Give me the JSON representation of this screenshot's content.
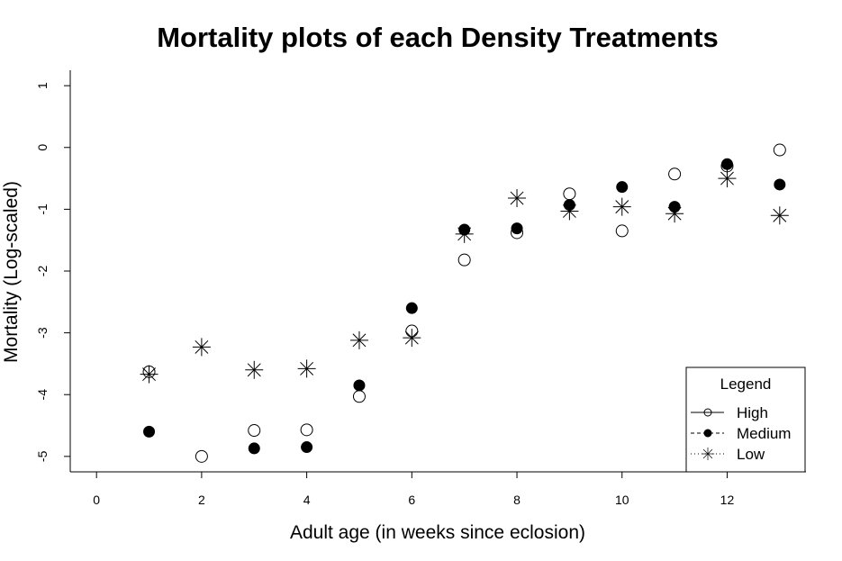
{
  "chart_data": {
    "type": "scatter",
    "title": "Mortality plots of each Density Treatments",
    "xlabel": "Adult age (in weeks since eclosion)",
    "ylabel": "Mortality (Log-scaled)",
    "xlim": [
      -0.5,
      13.5
    ],
    "ylim": [
      -5.25,
      1.25
    ],
    "xticks": [
      "0",
      "2",
      "4",
      "6",
      "8",
      "10",
      "12"
    ],
    "yticks": [
      "1",
      "0",
      "-1",
      "-2",
      "-3",
      "-4",
      "-5"
    ],
    "grid": false,
    "legend": {
      "title": "Legend",
      "position": "bottom-right",
      "entries": [
        {
          "label": "High",
          "marker": "open-circle",
          "line": "solid"
        },
        {
          "label": "Medium",
          "marker": "filled-circle",
          "line": "dashed"
        },
        {
          "label": "Low",
          "marker": "asterisk",
          "line": "dotted"
        }
      ]
    },
    "series": [
      {
        "name": "High",
        "marker": "open-circle",
        "x": [
          1,
          2,
          3,
          4,
          5,
          6,
          7,
          8,
          9,
          10,
          11,
          12,
          13
        ],
        "y": [
          -3.63,
          -5.0,
          -4.58,
          -4.57,
          -4.03,
          -2.97,
          -1.82,
          -1.38,
          -0.75,
          -1.35,
          -0.43,
          -0.3,
          -0.04
        ]
      },
      {
        "name": "Medium",
        "marker": "filled-circle",
        "x": [
          1,
          3,
          4,
          5,
          6,
          7,
          8,
          9,
          10,
          11,
          12,
          13
        ],
        "y": [
          -4.6,
          -4.87,
          -4.85,
          -3.85,
          -2.6,
          -1.33,
          -1.31,
          -0.93,
          -0.64,
          -0.96,
          -0.27,
          -0.6
        ]
      },
      {
        "name": "Low",
        "marker": "asterisk",
        "x": [
          1,
          2,
          3,
          4,
          5,
          6,
          7,
          8,
          9,
          10,
          11,
          12,
          13
        ],
        "y": [
          -3.67,
          -3.23,
          -3.6,
          -3.58,
          -3.12,
          -3.08,
          -1.4,
          -0.82,
          -1.03,
          -0.96,
          -1.07,
          -0.5,
          -1.1
        ]
      }
    ]
  }
}
